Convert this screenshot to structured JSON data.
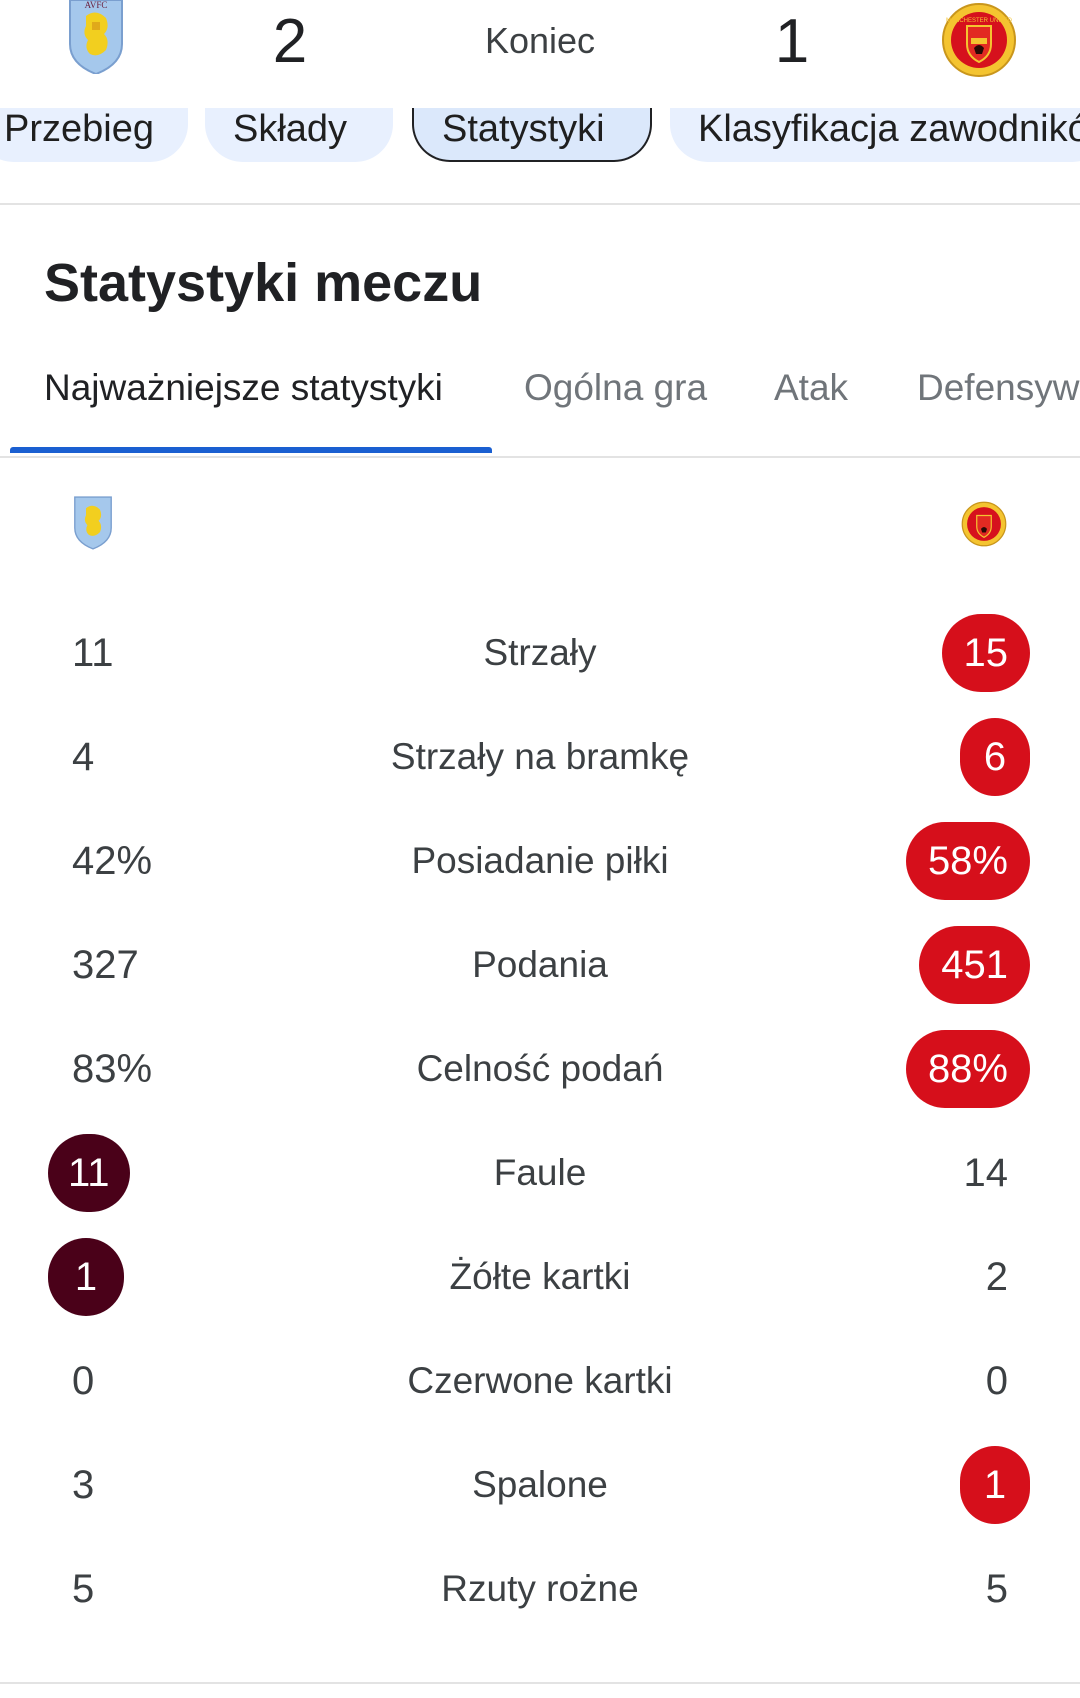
{
  "scoreboard": {
    "home_score": "2",
    "away_score": "1",
    "status": "Koniec",
    "home_crest_text": "AVFC",
    "away_crest_text": "MANCHESTER UNITED"
  },
  "chips": [
    {
      "label": "Przebieg"
    },
    {
      "label": "Składy"
    },
    {
      "label": "Statystyki"
    },
    {
      "label": "Klasyfikacja zawodników"
    }
  ],
  "section_title": "Statystyki meczu",
  "subtabs": [
    {
      "label": "Najważniejsze statystyki"
    },
    {
      "label": "Ogólna gra"
    },
    {
      "label": "Atak"
    },
    {
      "label": "Defensywa"
    }
  ],
  "stats": [
    {
      "label": "Strzały",
      "home": "11",
      "away": "15"
    },
    {
      "label": "Strzały na bramkę",
      "home": "4",
      "away": "6"
    },
    {
      "label": "Posiadanie piłki",
      "home": "42%",
      "away": "58%"
    },
    {
      "label": "Podania",
      "home": "327",
      "away": "451"
    },
    {
      "label": "Celność podań",
      "home": "83%",
      "away": "88%"
    },
    {
      "label": "Faule",
      "home": "11",
      "away": "14"
    },
    {
      "label": "Żółte kartki",
      "home": "1",
      "away": "2"
    },
    {
      "label": "Czerwone kartki",
      "home": "0",
      "away": "0"
    },
    {
      "label": "Spalone",
      "home": "3",
      "away": "1"
    },
    {
      "label": "Rzuty rożne",
      "home": "5",
      "away": "5"
    }
  ],
  "colors": {
    "home_highlight": "#4a0119",
    "away_highlight": "#d60f1b",
    "tab_underline": "#1a5fd1",
    "chip_bg": "#e8f0fe"
  }
}
